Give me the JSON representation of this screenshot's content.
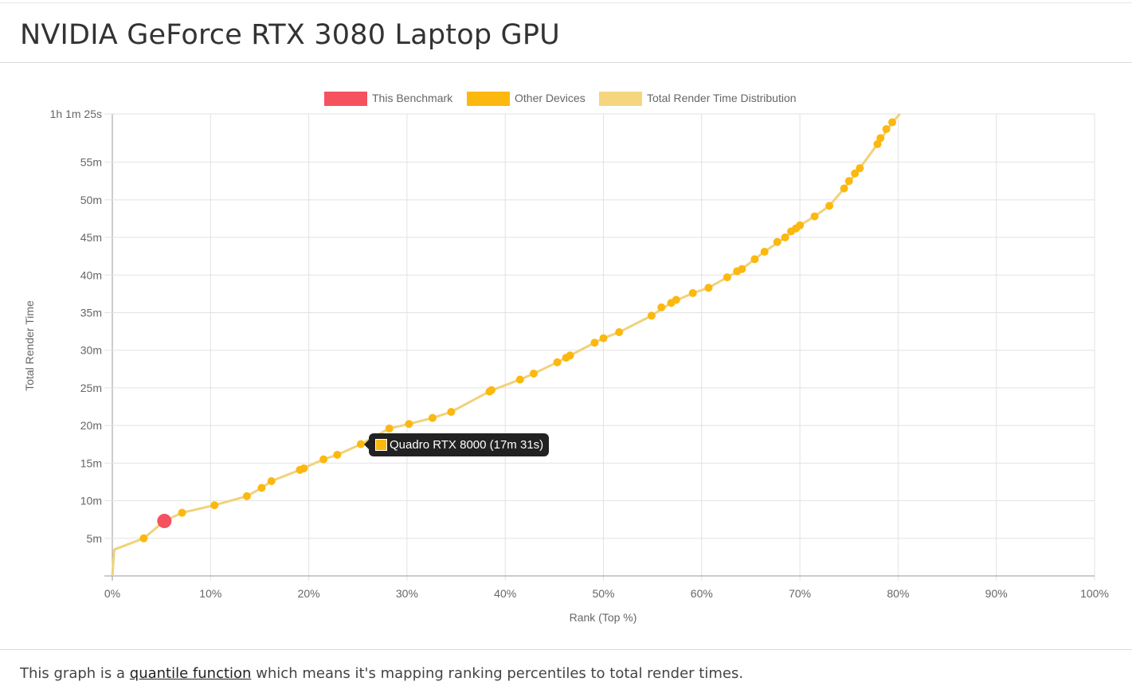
{
  "header": {
    "title": "NVIDIA GeForce RTX 3080 Laptop GPU"
  },
  "tooltip": {
    "label": "Quadro RTX 8000 (17m 31s)",
    "color": "#fbb80f"
  },
  "footer": {
    "prefix": "This graph is a ",
    "link": "quantile function",
    "suffix": " which means it's mapping ranking percentiles to total render times."
  },
  "chart_data": {
    "type": "line",
    "xlabel": "Rank (Top %)",
    "ylabel": "Total Render Time",
    "xlim": [
      0,
      100
    ],
    "ylim_minutes": [
      0,
      61.4167
    ],
    "x_ticks": [
      "0%",
      "10%",
      "20%",
      "30%",
      "40%",
      "50%",
      "60%",
      "70%",
      "80%",
      "90%",
      "100%"
    ],
    "y_ticks": [
      {
        "v": 5,
        "label": "5m"
      },
      {
        "v": 10,
        "label": "10m"
      },
      {
        "v": 15,
        "label": "15m"
      },
      {
        "v": 20,
        "label": "20m"
      },
      {
        "v": 25,
        "label": "25m"
      },
      {
        "v": 30,
        "label": "30m"
      },
      {
        "v": 35,
        "label": "35m"
      },
      {
        "v": 40,
        "label": "40m"
      },
      {
        "v": 45,
        "label": "45m"
      },
      {
        "v": 50,
        "label": "50m"
      },
      {
        "v": 55,
        "label": "55m"
      },
      {
        "v": 61.4167,
        "label": "1h 1m 25s"
      }
    ],
    "grid": true,
    "legend_position": "top-center",
    "legend": [
      {
        "name": "This Benchmark",
        "color": "#f5515f"
      },
      {
        "name": "Other Devices",
        "color": "#fbb80f"
      },
      {
        "name": "Total Render Time Distribution",
        "color": "#f5d67f"
      }
    ],
    "series": [
      {
        "name": "Total Render Time Distribution",
        "color": "#f0d27a",
        "points": [
          [
            0,
            0
          ],
          [
            0.2,
            3.5
          ],
          [
            3.2,
            5.0
          ],
          [
            5.3,
            7.3
          ],
          [
            7.1,
            8.4
          ],
          [
            10.4,
            9.4
          ],
          [
            13.7,
            10.6
          ],
          [
            15.2,
            11.7
          ],
          [
            16.2,
            12.6
          ],
          [
            19.1,
            14.1
          ],
          [
            21.5,
            15.5
          ],
          [
            22.9,
            16.1
          ],
          [
            25.3,
            17.5
          ],
          [
            28.2,
            19.6
          ],
          [
            30.2,
            20.2
          ],
          [
            32.6,
            21.0
          ],
          [
            34.5,
            21.8
          ],
          [
            38.5,
            24.6
          ],
          [
            41.5,
            26.1
          ],
          [
            42.9,
            26.9
          ],
          [
            45.3,
            28.4
          ],
          [
            46.6,
            29.3
          ],
          [
            49.1,
            31.0
          ],
          [
            50.0,
            31.6
          ],
          [
            51.6,
            32.4
          ],
          [
            54.9,
            34.6
          ],
          [
            56.9,
            36.3
          ],
          [
            59.1,
            37.6
          ],
          [
            60.7,
            38.3
          ],
          [
            62.6,
            39.7
          ],
          [
            64.1,
            40.8
          ],
          [
            66.4,
            43.1
          ],
          [
            68.5,
            45.0
          ],
          [
            70.0,
            46.6
          ],
          [
            71.5,
            47.8
          ],
          [
            73.0,
            49.2
          ],
          [
            74.5,
            51.5
          ],
          [
            76.1,
            54.2
          ],
          [
            77.9,
            57.4
          ],
          [
            79.4,
            60.3
          ],
          [
            80.2,
            61.4167
          ]
        ]
      },
      {
        "name": "Other Devices",
        "color": "#fbb80f",
        "points": [
          [
            3.2,
            5.0
          ],
          [
            7.1,
            8.4
          ],
          [
            10.4,
            9.4
          ],
          [
            13.7,
            10.6
          ],
          [
            15.2,
            11.7
          ],
          [
            16.2,
            12.6
          ],
          [
            19.1,
            14.1
          ],
          [
            19.5,
            14.3
          ],
          [
            21.5,
            15.5
          ],
          [
            22.9,
            16.1
          ],
          [
            25.3,
            17.52
          ],
          [
            28.2,
            19.6
          ],
          [
            30.2,
            20.2
          ],
          [
            32.6,
            21.0
          ],
          [
            34.5,
            21.8
          ],
          [
            38.4,
            24.5
          ],
          [
            38.6,
            24.7
          ],
          [
            41.5,
            26.1
          ],
          [
            42.9,
            26.9
          ],
          [
            45.3,
            28.4
          ],
          [
            46.2,
            29.0
          ],
          [
            46.6,
            29.3
          ],
          [
            49.1,
            31.0
          ],
          [
            50.0,
            31.6
          ],
          [
            51.6,
            32.4
          ],
          [
            54.9,
            34.6
          ],
          [
            55.9,
            35.7
          ],
          [
            56.9,
            36.3
          ],
          [
            57.4,
            36.7
          ],
          [
            59.1,
            37.6
          ],
          [
            60.7,
            38.3
          ],
          [
            62.6,
            39.7
          ],
          [
            63.6,
            40.5
          ],
          [
            64.1,
            40.8
          ],
          [
            65.4,
            42.1
          ],
          [
            66.4,
            43.1
          ],
          [
            67.7,
            44.4
          ],
          [
            68.5,
            45.0
          ],
          [
            69.1,
            45.8
          ],
          [
            69.6,
            46.2
          ],
          [
            70.0,
            46.6
          ],
          [
            71.5,
            47.8
          ],
          [
            73.0,
            49.2
          ],
          [
            74.5,
            51.5
          ],
          [
            75.0,
            52.5
          ],
          [
            75.6,
            53.5
          ],
          [
            76.1,
            54.2
          ],
          [
            77.9,
            57.4
          ],
          [
            78.2,
            58.2
          ],
          [
            78.8,
            59.4
          ],
          [
            79.4,
            60.3
          ]
        ]
      },
      {
        "name": "This Benchmark",
        "color": "#f5515f",
        "points": [
          [
            5.3,
            7.3
          ]
        ]
      }
    ]
  }
}
